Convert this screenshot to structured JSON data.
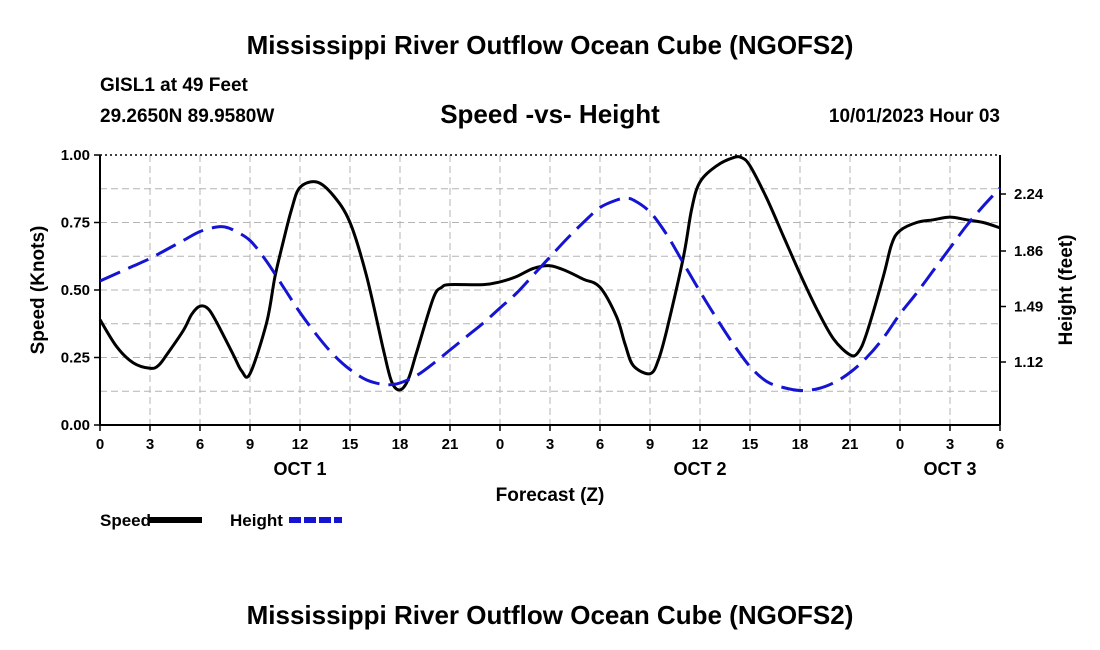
{
  "titles": {
    "main": "Mississippi River Outflow Ocean Cube (NGOFS2)",
    "repeat": "Mississippi River Outflow Ocean Cube (NGOFS2)"
  },
  "station": {
    "name": "GISL1 at 49 Feet",
    "coords": "29.2650N  89.9580W",
    "datetime": "10/01/2023 Hour 03"
  },
  "chart_data": {
    "type": "line",
    "title": "Speed -vs- Height",
    "xlabel": "Forecast (Z)",
    "ylabel": "Speed (Knots)",
    "y2label": "Height (feet)",
    "xlim": [
      0,
      54
    ],
    "ylim": [
      0,
      1
    ],
    "y2lim": [
      0.7,
      2.5
    ],
    "grid": true,
    "legend_position": "bottom-left",
    "x_ticks": [
      {
        "x": 0,
        "label": "0"
      },
      {
        "x": 3,
        "label": "3"
      },
      {
        "x": 6,
        "label": "6"
      },
      {
        "x": 9,
        "label": "9"
      },
      {
        "x": 12,
        "label": "12"
      },
      {
        "x": 15,
        "label": "15"
      },
      {
        "x": 18,
        "label": "18"
      },
      {
        "x": 21,
        "label": "21"
      },
      {
        "x": 24,
        "label": "0"
      },
      {
        "x": 27,
        "label": "3"
      },
      {
        "x": 30,
        "label": "6"
      },
      {
        "x": 33,
        "label": "9"
      },
      {
        "x": 36,
        "label": "12"
      },
      {
        "x": 39,
        "label": "15"
      },
      {
        "x": 42,
        "label": "18"
      },
      {
        "x": 45,
        "label": "21"
      },
      {
        "x": 48,
        "label": "0"
      },
      {
        "x": 51,
        "label": "3"
      },
      {
        "x": 54,
        "label": "6"
      }
    ],
    "date_labels": [
      {
        "x": 12,
        "label": "OCT 1"
      },
      {
        "x": 36,
        "label": "OCT 2"
      },
      {
        "x": 51,
        "label": "OCT 3"
      }
    ],
    "y_ticks": [
      {
        "value": 0,
        "label": "0.00"
      },
      {
        "value": 0.25,
        "label": "0.25"
      },
      {
        "value": 0.5,
        "label": "0.50"
      },
      {
        "value": 0.75,
        "label": "0.75"
      },
      {
        "value": 1,
        "label": "1.00"
      }
    ],
    "y2_ticks": [
      {
        "value": 1.12,
        "label": "1.12"
      },
      {
        "value": 1.49,
        "label": "1.49"
      },
      {
        "value": 1.86,
        "label": "1.86"
      },
      {
        "value": 2.24,
        "label": "2.24"
      }
    ],
    "series": [
      {
        "name": "Speed",
        "axis": "left",
        "color": "#000000",
        "dash": "solid",
        "points": [
          [
            0,
            0.39
          ],
          [
            1,
            0.29
          ],
          [
            2,
            0.23
          ],
          [
            3,
            0.21
          ],
          [
            3.5,
            0.22
          ],
          [
            4,
            0.26
          ],
          [
            5,
            0.35
          ],
          [
            5.5,
            0.41
          ],
          [
            6,
            0.44
          ],
          [
            6.5,
            0.43
          ],
          [
            7,
            0.38
          ],
          [
            8,
            0.26
          ],
          [
            8.5,
            0.2
          ],
          [
            9,
            0.19
          ],
          [
            10,
            0.38
          ],
          [
            10.5,
            0.55
          ],
          [
            11,
            0.68
          ],
          [
            11.5,
            0.8
          ],
          [
            12,
            0.88
          ],
          [
            13,
            0.9
          ],
          [
            14,
            0.85
          ],
          [
            15,
            0.75
          ],
          [
            16,
            0.55
          ],
          [
            17,
            0.28
          ],
          [
            17.5,
            0.16
          ],
          [
            18,
            0.13
          ],
          [
            18.5,
            0.17
          ],
          [
            19,
            0.27
          ],
          [
            20,
            0.47
          ],
          [
            20.5,
            0.51
          ],
          [
            21,
            0.52
          ],
          [
            23,
            0.52
          ],
          [
            24,
            0.53
          ],
          [
            25,
            0.55
          ],
          [
            26,
            0.58
          ],
          [
            27,
            0.59
          ],
          [
            28,
            0.57
          ],
          [
            29,
            0.54
          ],
          [
            30,
            0.51
          ],
          [
            31,
            0.4
          ],
          [
            31.5,
            0.3
          ],
          [
            32,
            0.22
          ],
          [
            33,
            0.19
          ],
          [
            33.5,
            0.24
          ],
          [
            34,
            0.35
          ],
          [
            35,
            0.62
          ],
          [
            35.5,
            0.8
          ],
          [
            36,
            0.9
          ],
          [
            37,
            0.96
          ],
          [
            38,
            0.99
          ],
          [
            38.5,
            0.99
          ],
          [
            39,
            0.96
          ],
          [
            40,
            0.84
          ],
          [
            41,
            0.7
          ],
          [
            42,
            0.56
          ],
          [
            43,
            0.43
          ],
          [
            44,
            0.32
          ],
          [
            45,
            0.26
          ],
          [
            45.5,
            0.27
          ],
          [
            46,
            0.34
          ],
          [
            47,
            0.55
          ],
          [
            47.5,
            0.67
          ],
          [
            48,
            0.72
          ],
          [
            49,
            0.75
          ],
          [
            50,
            0.76
          ],
          [
            51,
            0.77
          ],
          [
            52,
            0.76
          ],
          [
            53,
            0.75
          ],
          [
            54,
            0.73
          ]
        ]
      },
      {
        "name": "Height",
        "axis": "right",
        "color": "#1414d2",
        "dash": "dashed",
        "points": [
          [
            0,
            1.66
          ],
          [
            1,
            1.71
          ],
          [
            2,
            1.76
          ],
          [
            3,
            1.81
          ],
          [
            4,
            1.87
          ],
          [
            5,
            1.93
          ],
          [
            6,
            1.99
          ],
          [
            7,
            2.02
          ],
          [
            7.5,
            2.02
          ],
          [
            8,
            2.0
          ],
          [
            9,
            1.93
          ],
          [
            10,
            1.79
          ],
          [
            11,
            1.62
          ],
          [
            12,
            1.45
          ],
          [
            13,
            1.3
          ],
          [
            14,
            1.17
          ],
          [
            15,
            1.07
          ],
          [
            16,
            1.0
          ],
          [
            17,
            0.97
          ],
          [
            17.5,
            0.97
          ],
          [
            18,
            0.98
          ],
          [
            19,
            1.03
          ],
          [
            20,
            1.11
          ],
          [
            21,
            1.2
          ],
          [
            22,
            1.29
          ],
          [
            23,
            1.38
          ],
          [
            24,
            1.48
          ],
          [
            25,
            1.58
          ],
          [
            26,
            1.7
          ],
          [
            27,
            1.82
          ],
          [
            28,
            1.94
          ],
          [
            29,
            2.05
          ],
          [
            30,
            2.15
          ],
          [
            31,
            2.2
          ],
          [
            31.5,
            2.21
          ],
          [
            32,
            2.2
          ],
          [
            33,
            2.12
          ],
          [
            34,
            1.97
          ],
          [
            35,
            1.78
          ],
          [
            36,
            1.59
          ],
          [
            37,
            1.41
          ],
          [
            38,
            1.24
          ],
          [
            39,
            1.09
          ],
          [
            40,
            0.99
          ],
          [
            41,
            0.95
          ],
          [
            42,
            0.93
          ],
          [
            43,
            0.94
          ],
          [
            44,
            0.98
          ],
          [
            45,
            1.05
          ],
          [
            46,
            1.15
          ],
          [
            47,
            1.28
          ],
          [
            48,
            1.44
          ],
          [
            49,
            1.58
          ],
          [
            50,
            1.73
          ],
          [
            51,
            1.88
          ],
          [
            52,
            2.03
          ],
          [
            53,
            2.16
          ],
          [
            54,
            2.28
          ]
        ]
      }
    ]
  }
}
